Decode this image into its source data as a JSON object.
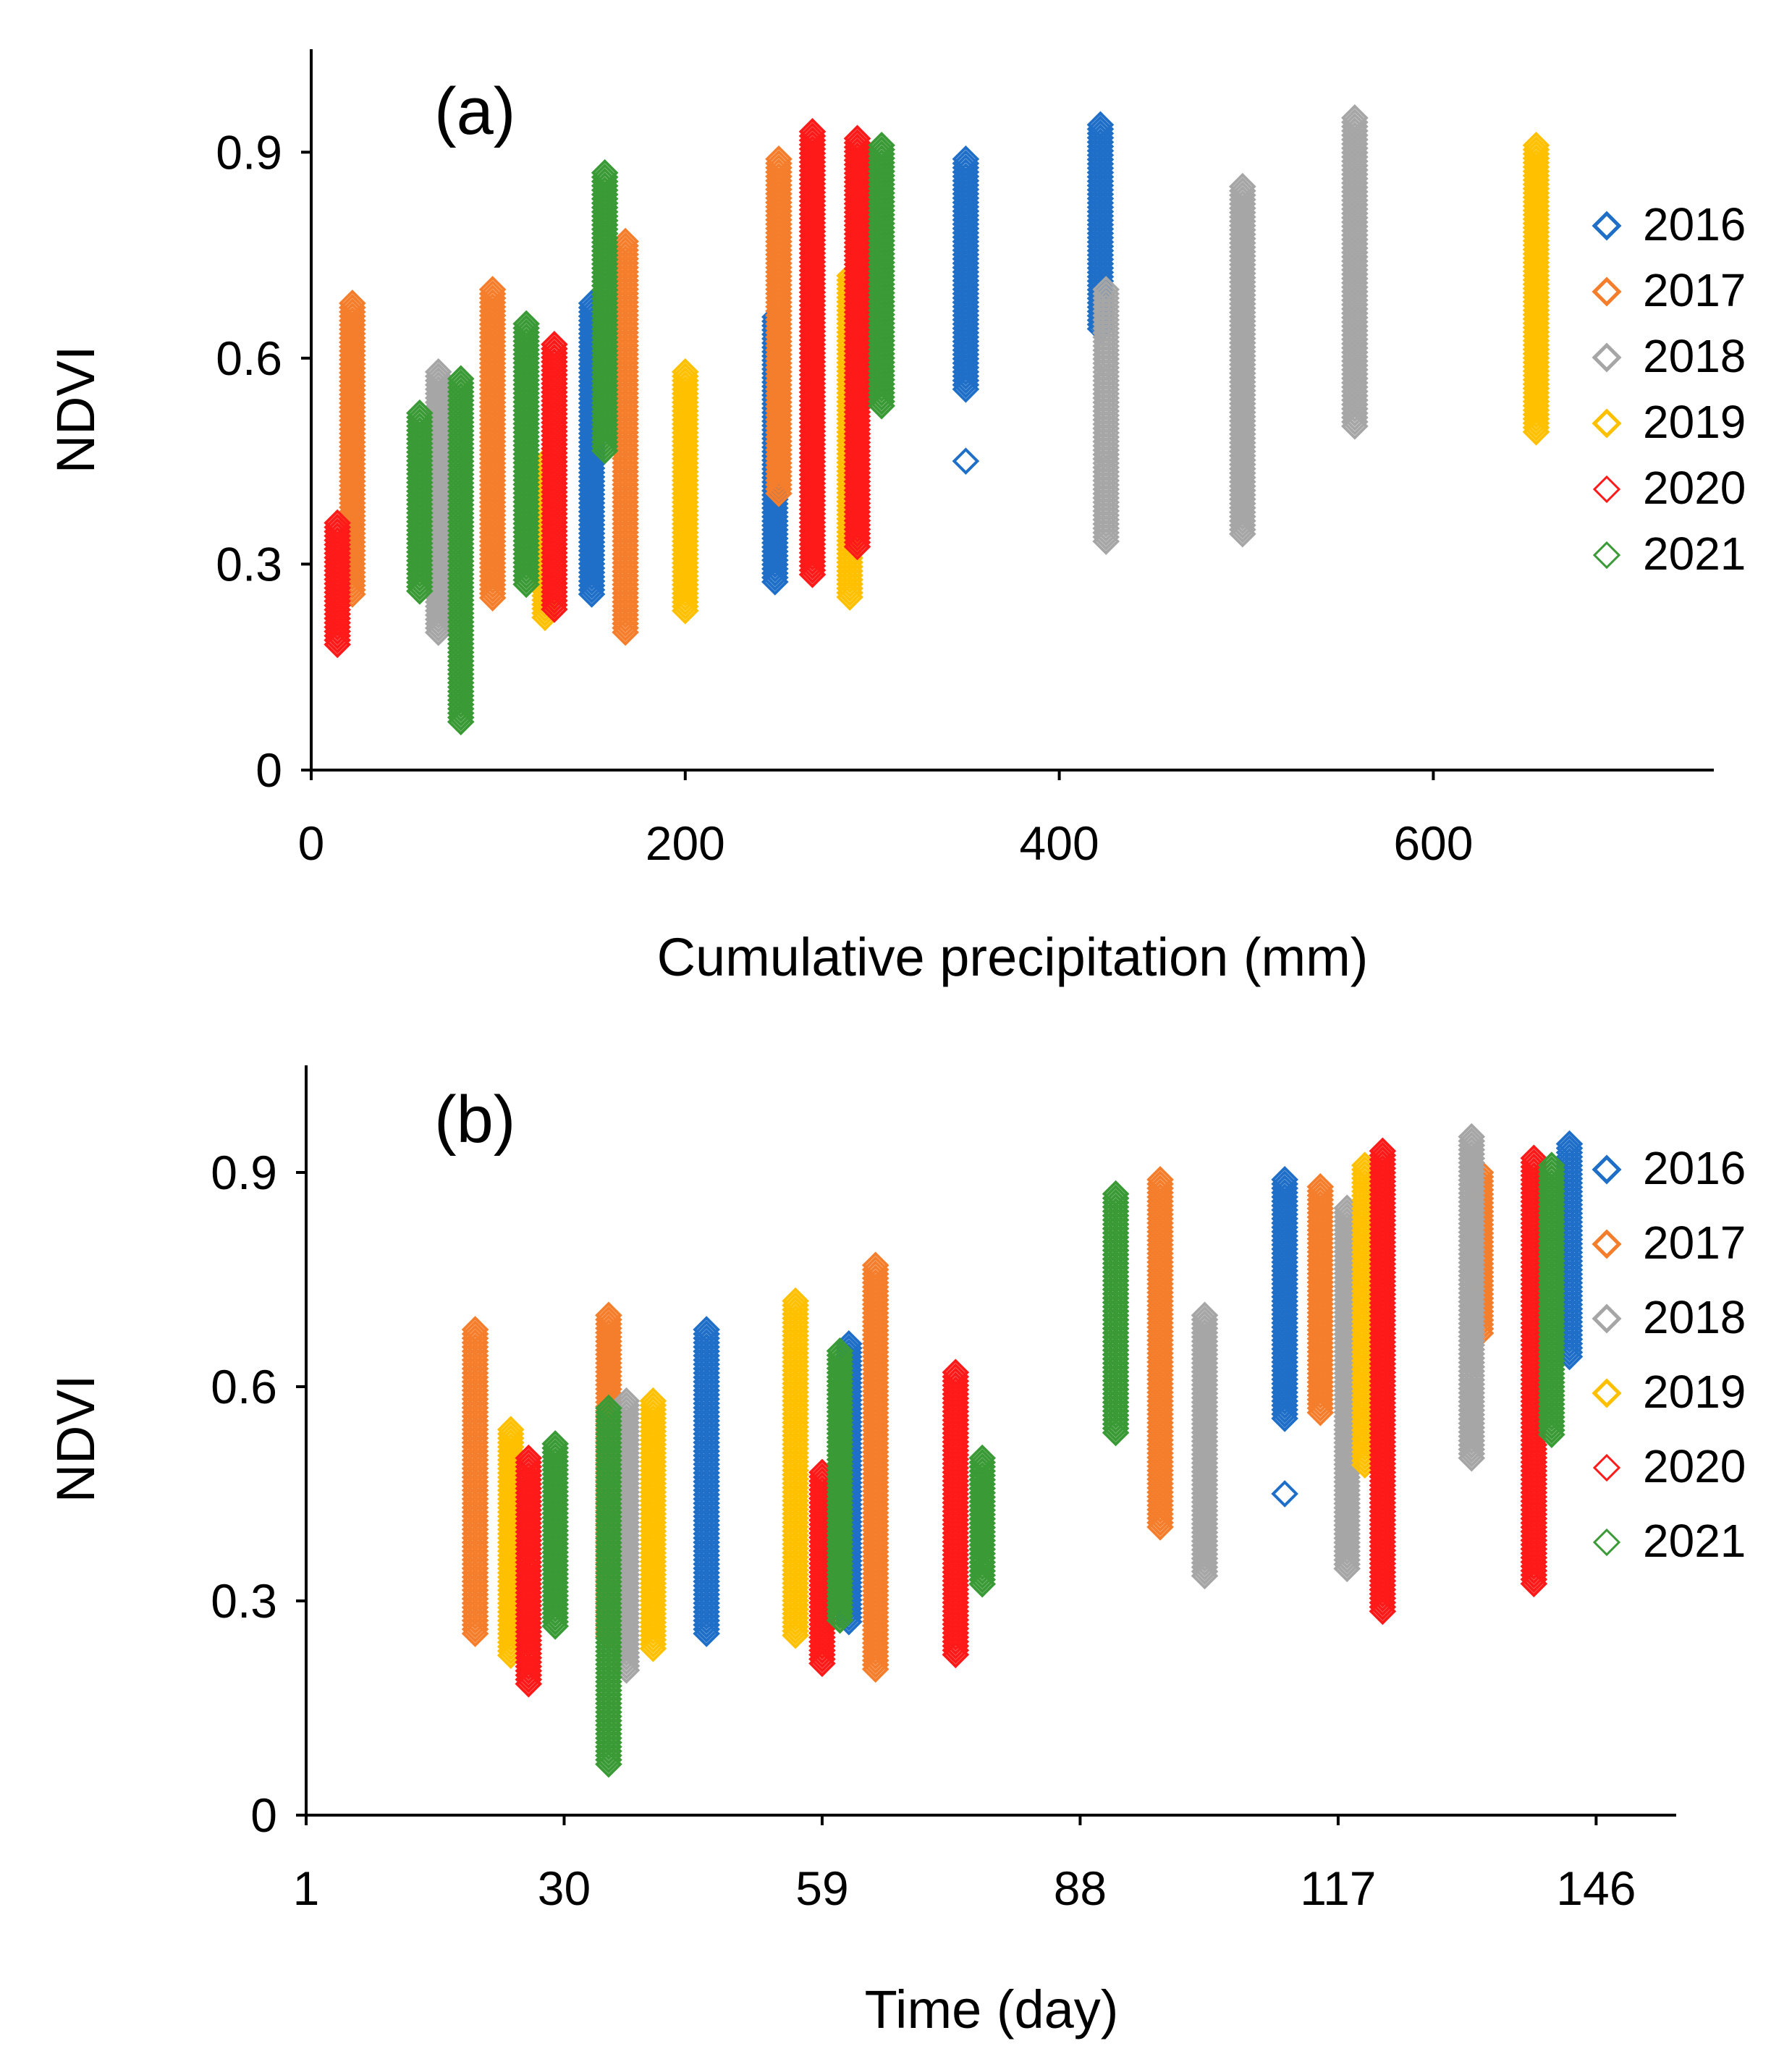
{
  "figure": {
    "colors": {
      "2016": "#1f6fc8",
      "2017": "#f57e2c",
      "2018": "#a6a6a6",
      "2019": "#ffc000",
      "2020": "#ff1a1a",
      "2021": "#3a9a35"
    }
  },
  "chart_data": [
    {
      "type": "scatter",
      "panel_label": "(a)",
      "title": "",
      "xlabel": "Cumulative precipitation (mm)",
      "ylabel": "NDVI",
      "xlim": [
        0,
        750
      ],
      "ylim": [
        0,
        1.05
      ],
      "xticks": [
        {
          "v": 0,
          "label": "0"
        },
        {
          "v": 200,
          "label": "200"
        },
        {
          "v": 400,
          "label": "400"
        },
        {
          "v": 600,
          "label": "600"
        }
      ],
      "yticks": [
        {
          "v": 0,
          "label": "0"
        },
        {
          "v": 0.3,
          "label": "0.3"
        },
        {
          "v": 0.6,
          "label": "0.6"
        },
        {
          "v": 0.9,
          "label": "0.9"
        }
      ],
      "legend": [
        "2016",
        "2017",
        "2018",
        "2019",
        "2020",
        "2021"
      ],
      "legend_position": "right",
      "series": [
        {
          "name": "2016",
          "columns": [
            [
              150,
              0.25,
              0.68
            ],
            [
              248,
              0.27,
              0.66
            ],
            [
              350,
              0.55,
              0.89
            ],
            [
              422,
              0.64,
              0.94
            ]
          ],
          "outliers": [
            [
              350,
              0.45
            ]
          ]
        },
        {
          "name": "2017",
          "columns": [
            [
              22,
              0.25,
              0.68
            ],
            [
              97,
              0.25,
              0.7
            ],
            [
              168,
              0.2,
              0.77
            ],
            [
              250,
              0.4,
              0.89
            ]
          ],
          "outliers": []
        },
        {
          "name": "2018",
          "columns": [
            [
              68,
              0.2,
              0.58
            ],
            [
              425,
              0.33,
              0.7
            ],
            [
              498,
              0.34,
              0.85
            ],
            [
              558,
              0.5,
              0.95
            ]
          ],
          "outliers": []
        },
        {
          "name": "2019",
          "columns": [
            [
              125,
              0.22,
              0.45
            ],
            [
              200,
              0.23,
              0.58
            ],
            [
              288,
              0.25,
              0.72
            ],
            [
              655,
              0.49,
              0.91
            ]
          ],
          "outliers": []
        },
        {
          "name": "2020",
          "columns": [
            [
              14,
              0.18,
              0.36
            ],
            [
              130,
              0.23,
              0.62
            ],
            [
              268,
              0.28,
              0.93
            ],
            [
              292,
              0.32,
              0.92
            ]
          ],
          "outliers": []
        },
        {
          "name": "2021",
          "columns": [
            [
              58,
              0.26,
              0.52
            ],
            [
              80,
              0.07,
              0.57
            ],
            [
              115,
              0.27,
              0.65
            ],
            [
              157,
              0.46,
              0.87
            ],
            [
              305,
              0.53,
              0.91
            ]
          ],
          "outliers": []
        }
      ]
    },
    {
      "type": "scatter",
      "panel_label": "(b)",
      "title": "",
      "xlabel": "Time (day)",
      "ylabel": "NDVI",
      "xlim": [
        1,
        155
      ],
      "ylim": [
        0,
        1.05
      ],
      "xticks": [
        {
          "v": 1,
          "label": "1"
        },
        {
          "v": 30,
          "label": "30"
        },
        {
          "v": 59,
          "label": "59"
        },
        {
          "v": 88,
          "label": "88"
        },
        {
          "v": 117,
          "label": "117"
        },
        {
          "v": 146,
          "label": "146"
        }
      ],
      "yticks": [
        {
          "v": 0,
          "label": "0"
        },
        {
          "v": 0.3,
          "label": "0.3"
        },
        {
          "v": 0.6,
          "label": "0.6"
        },
        {
          "v": 0.9,
          "label": "0.9"
        }
      ],
      "legend": [
        "2016",
        "2017",
        "2018",
        "2019",
        "2020",
        "2021"
      ],
      "legend_position": "right",
      "series": [
        {
          "name": "2016",
          "columns": [
            [
              46,
              0.25,
              0.68
            ],
            [
              62,
              0.27,
              0.66
            ],
            [
              111,
              0.55,
              0.89
            ],
            [
              143,
              0.64,
              0.94
            ]
          ],
          "outliers": [
            [
              111,
              0.45
            ]
          ]
        },
        {
          "name": "2017",
          "columns": [
            [
              20,
              0.25,
              0.68
            ],
            [
              35,
              0.25,
              0.7
            ],
            [
              65,
              0.2,
              0.77
            ],
            [
              97,
              0.4,
              0.89
            ],
            [
              115,
              0.56,
              0.88
            ],
            [
              133,
              0.67,
              0.9
            ]
          ],
          "outliers": []
        },
        {
          "name": "2018",
          "columns": [
            [
              37,
              0.2,
              0.58
            ],
            [
              102,
              0.33,
              0.7
            ],
            [
              118,
              0.34,
              0.85
            ],
            [
              132,
              0.5,
              0.95
            ]
          ],
          "outliers": []
        },
        {
          "name": "2019",
          "columns": [
            [
              24,
              0.22,
              0.54
            ],
            [
              40,
              0.23,
              0.58
            ],
            [
              56,
              0.25,
              0.72
            ],
            [
              120,
              0.49,
              0.91
            ]
          ],
          "outliers": []
        },
        {
          "name": "2020",
          "columns": [
            [
              26,
              0.18,
              0.5
            ],
            [
              59,
              0.21,
              0.48
            ],
            [
              74,
              0.22,
              0.62
            ],
            [
              122,
              0.28,
              0.93
            ],
            [
              139,
              0.32,
              0.92
            ]
          ],
          "outliers": []
        },
        {
          "name": "2021",
          "columns": [
            [
              29,
              0.26,
              0.52
            ],
            [
              35,
              0.07,
              0.57
            ],
            [
              61,
              0.27,
              0.65
            ],
            [
              77,
              0.32,
              0.5
            ],
            [
              92,
              0.53,
              0.87
            ],
            [
              141,
              0.53,
              0.91
            ]
          ],
          "outliers": []
        }
      ]
    }
  ]
}
